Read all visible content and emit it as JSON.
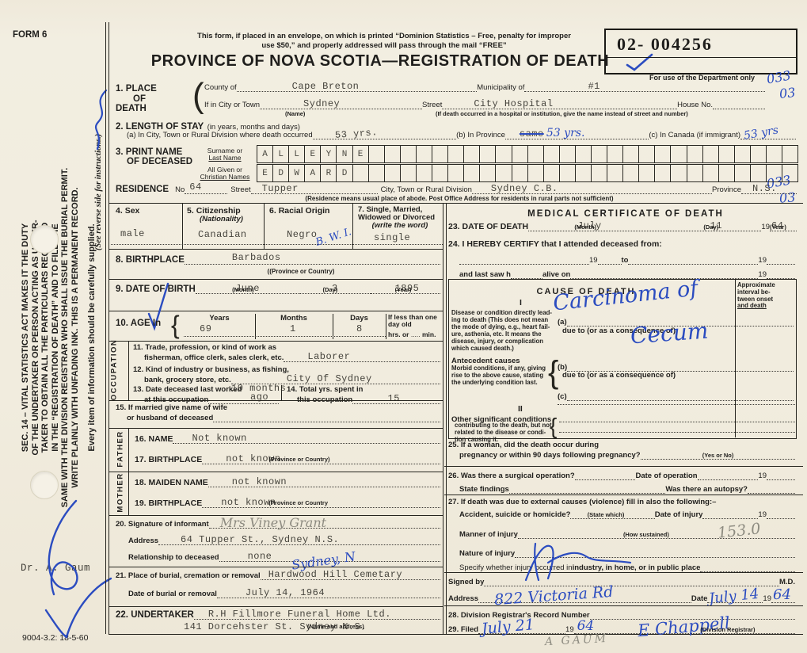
{
  "header": {
    "form_no": "FORM 6",
    "note1": "This form, if placed in an envelope, on which is printed “Dominion Statistics – Free, penalty for improper",
    "note2": "use $50,” and properly addressed will pass through the mail “FREE”",
    "title": "PROVINCE OF NOVA SCOTIA—REGISTRATION OF DEATH",
    "serial": "02- 004256",
    "dept_only": "For use of the Department only"
  },
  "sidebar": {
    "line1": "SEC. 14 – VITAL STATISTICS ACT MAKES IT THE DUTY",
    "line2": "OF THE UNDERTAKER OR PERSON ACTING AS UNDER-",
    "line3": "TAKER TO OBTAIN ALL THE PARTICULARS REQUIRED",
    "line4": "IN THE “REGISTRATION OF DEATH” AND TO FILE THE",
    "line5": "SAME WITH THE DIVISION REGISTRAR WHO SHALL ISSUE THE BURIAL PERMIT.",
    "line6": "WRITE PLAINLY WITH UNFADING INK. THIS IS A PERMANENT RECORD.",
    "every_item": "Every item of information should be carefully supplied.",
    "see_reverse": "(See reverse side for instructions.)",
    "doctor": "Dr.  A.  Gaum",
    "code": "9004-3.2: 18-5-60"
  },
  "codes": {
    "top1": "033",
    "top2": "03",
    "res1": "033",
    "res2": "03"
  },
  "place": {
    "no": "1.",
    "l1": "PLACE",
    "l2": "OF",
    "l3": "DEATH",
    "county_label": "County of",
    "county": "Cape Breton",
    "municipality_label": "Municipality of",
    "municipality": "#1",
    "city_label": "If in City or Town",
    "city": "Sydney",
    "city_fine": "(Name)",
    "street_label": "Street",
    "street": "City Hospital",
    "street_fine": "(If death occurred in a hospital or institution, give the name instead of street and number)",
    "house_label": "House No."
  },
  "stay": {
    "no": "2.",
    "label": "LENGTH OF STAY",
    "fine": "(in years, months and days)",
    "a_label": "(a) In City, Town or Rural Division where death occurred",
    "a": "53 yrs.",
    "b_label": "(b) In Province",
    "b_strike": "same",
    "b": "53 yrs.",
    "c_label": "(c) In Canada (if immigrant)",
    "c": "53 yrs"
  },
  "name_grid": {
    "no": "3.",
    "l1": "PRINT NAME",
    "l2": "OF DECEASED",
    "surname_label1": "Surname or",
    "surname_label2": "Last Name",
    "given_label1": "All Given or",
    "given_label2": "Christian Names",
    "surname": "ALLEYNE",
    "given": "EDWARD",
    "cell_count": 34
  },
  "residence": {
    "label": "RESIDENCE",
    "no_label": "No",
    "no": "64",
    "street_label": "Street",
    "street": "Tupper",
    "div_label": "City, Town or Rural Division",
    "div": "Sydney C.B.",
    "prov_label": "Province",
    "prov": "N.S.",
    "note": "(Residence means usual place of abode. Post Office Address for residents in rural parts not sufficient)"
  },
  "personal": {
    "sex_no": "4.",
    "sex_label": "Sex",
    "sex": "male",
    "cit_no": "5.",
    "cit_label": "Citizenship",
    "cit_fine": "(Nationality)",
    "cit": "Canadian",
    "race_no": "6.",
    "race_label": "Racial Origin",
    "race": "Negro",
    "race_note": "B. W. I.",
    "mar_no": "7.",
    "mar_l1": "Single, Married,",
    "mar_l2": "Widowed or Divorced",
    "mar_fine": "(write the word)",
    "mar": "single"
  },
  "birthplace": {
    "no": "8.",
    "label": "BIRTHPLACE",
    "value": "Barbados",
    "fine": "((Province or Country)"
  },
  "dob": {
    "no": "9.",
    "label": "DATE OF BIRTH",
    "month": "June",
    "month_fine": "(Month)",
    "day": "3",
    "day_fine": "(Day)",
    "year": "1895",
    "year_fine": "(Year)"
  },
  "age": {
    "no": "10.",
    "label": "AGE In",
    "years_label": "Years",
    "years": "69",
    "months_label": "Months",
    "months": "1",
    "days_label": "Days",
    "days": "8",
    "less_l1": "If less than one day old",
    "hrs": "hrs. or",
    "min": "min."
  },
  "occupation": {
    "side": "OCCUPATION",
    "q11_no": "11.",
    "q11_l1": "Trade, profession, or kind of work as",
    "q11_l2": "fisherman, office clerk, sales clerk, etc.",
    "q11": "Laborer",
    "q12_no": "12.",
    "q12_l1": "Kind of industry or business, as fishing,",
    "q12_l2": "bank, grocery store, etc.",
    "q12": "City Of Sydney",
    "q13_no": "13.",
    "q13_l1": "Date deceased last worked",
    "q13_l2": "at this occupation",
    "q13a": "10 months",
    "q13b": "ago",
    "q14_no": "14.",
    "q14_l1": "Total yrs. spent in",
    "q14_l2": "this occupation",
    "q14": "15"
  },
  "q15": {
    "no": "15.",
    "l1": "If married give name of wife",
    "l2": "or husband of deceased"
  },
  "father": {
    "side": "FATHER",
    "name_no": "16.",
    "name_label": "NAME",
    "name": "Not known",
    "bp_no": "17.",
    "bp_label": "BIRTHPLACE",
    "bp": "not known",
    "bp_fine": "(Province or Country)"
  },
  "mother": {
    "side": "MOTHER",
    "maiden_no": "18.",
    "maiden_label": "MAIDEN NAME",
    "maiden": "not known",
    "bp_no": "19.",
    "bp_label": "BIRTHPLACE",
    "bp": "not known",
    "bp_fine": "(Province or Country"
  },
  "informant": {
    "no": "20.",
    "label": "Signature of informant",
    "signature": "Mrs Viney Grant",
    "addr_label": "Address",
    "addr": "64 Tupper St., Sydney N.S.",
    "rel_label": "Relationship to deceased",
    "rel": "none",
    "annotation": "Sydney, N"
  },
  "burial": {
    "no": "21.",
    "label": "Place of burial, cremation or removal",
    "value": "Hardwood Hill Cemetary",
    "date_label": "Date of burial or removal",
    "date": "July 14, 1964"
  },
  "undertaker": {
    "no": "22.",
    "label": "UNDERTAKER",
    "value": "R.H Fillmore Funeral Home Ltd.",
    "value2": "141 Dorcehster St. Sydney N.S.",
    "fine": "(Name and address)"
  },
  "medical": {
    "title": "MEDICAL CERTIFICATE OF DEATH",
    "q23_no": "23.",
    "q23_label": "DATE OF DEATH",
    "month": "July",
    "month_fine": "(Month)",
    "day": "11",
    "day_fine": "(Day)",
    "y19": "19",
    "year": "64",
    "year_fine": "(Year)",
    "q24_no": "24.",
    "q24_label": "I HEREBY CERTIFY that I attended deceased from:",
    "to": "to",
    "last_saw": "and last saw h",
    "alive_on": "alive on",
    "cause_title": "CAUSE OF DEATH",
    "interval_l1": "Approximate",
    "interval_l2": "interval be-",
    "interval_l3": "tween onset",
    "interval_l4": "and death",
    "roman1": "I",
    "roman2": "II",
    "disease_l1": "Disease or condition directly lead-",
    "disease_l2": "ing to death (This does not mean",
    "disease_l3": "the mode of dying, e.g., heart fail-",
    "disease_l4": "ure, asthenia, etc. It means the",
    "disease_l5": "disease, injury, or complication",
    "disease_l6": "which caused death.)",
    "a": "(a)",
    "due_a": "due to (or as a consequence of)",
    "antecedent_title": "Antecedent causes",
    "ante_l1": "Morbid conditions, if any, giving",
    "ante_l2": "rise to the above cause, stating",
    "ante_l3": "the underlying condition last.",
    "b": "(b)",
    "due_b": "due to (or as a consequence of)",
    "c": "(c)",
    "other_title": "Other significant conditions",
    "other_l1": "contributing to the death, but not",
    "other_l2": "related to the disease or condi-",
    "other_l3": "tion causing it.",
    "cause_hand1": "Carcinoma of",
    "cause_hand2": "Cecum",
    "q25_no": "25.",
    "q25_l1": "If a woman, did the death occur during",
    "q25_l2": "pregnancy or within 90 days following pregnancy?",
    "q25_fine": "(Yes or No)",
    "q26_no": "26.",
    "q26_l1": "Was there a surgical operation?",
    "op_date": "Date of operation",
    "findings": "State findings",
    "autopsy": "Was there an autopsy?",
    "q27_no": "27.",
    "q27_l1": "If death was due to external causes (violence) fill in also the following:–",
    "accident": "Accident, suicide or homicide?",
    "state_which": "(State which)",
    "injury_date": "Date of injury",
    "manner": "Manner of injury",
    "how": "(How sustained)",
    "manner_code": "153.0",
    "nature": "Nature of injury",
    "specify1": "Specify whether injury occurred in ",
    "specify2": "industry, in home, or in public place",
    "signed_label": "Signed by",
    "md": "M.D.",
    "addr_label": "Address",
    "addr": "822 Victoria Rd",
    "date_label": "Date",
    "date": "July 14",
    "date_year": "64",
    "q28_no": "28.",
    "q28_label": "Division Registrar's Record Number",
    "q29_no": "29.",
    "q29_label": "Filed",
    "filed_date": "July 21",
    "filed_year": "64",
    "registrar": "E Chappell",
    "registrar_fine": "(Division Registrar)",
    "pencil_name": "A GAUM"
  }
}
